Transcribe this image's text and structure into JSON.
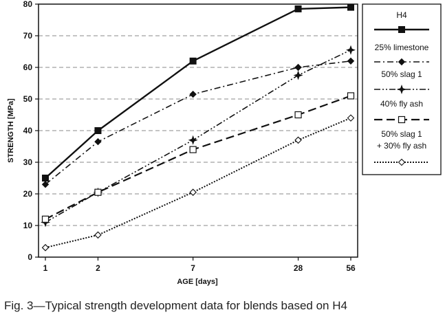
{
  "caption": "Fig. 3—Typical strength development data for blends based on H4",
  "chart_data": {
    "type": "line",
    "xlabel": "AGE [days]",
    "ylabel": "STRENGTH [MPa]",
    "x_scale": "log",
    "categories": [
      "1",
      "2",
      "7",
      "28",
      "56"
    ],
    "x": [
      1,
      2,
      7,
      28,
      56
    ],
    "ylim": [
      0,
      80
    ],
    "yticks": [
      0,
      10,
      20,
      30,
      40,
      50,
      60,
      70,
      80
    ],
    "grid": "horizontal dashed",
    "legend_position": "right",
    "series": [
      {
        "name": "H4",
        "values": [
          25,
          40,
          62,
          78.5,
          79
        ],
        "color": "#111111",
        "dash": "solid",
        "marker": "filled-square"
      },
      {
        "name": "25% limestone",
        "values": [
          23,
          36.5,
          51.5,
          60,
          62
        ],
        "color": "#111111",
        "dash": "dash-dot",
        "marker": "filled-diamond"
      },
      {
        "name": "50% slag 1",
        "values": [
          11,
          20.5,
          37,
          57.5,
          65.5
        ],
        "color": "#111111",
        "dash": "dash-dot-dot",
        "marker": "star"
      },
      {
        "name": "40% fly ash",
        "values": [
          12,
          20.5,
          34,
          45,
          51
        ],
        "color": "#111111",
        "dash": "long-dash",
        "marker": "open-square"
      },
      {
        "name": "50% slag 1\n+ 30% fly ash",
        "values": [
          3,
          7,
          20.5,
          37,
          44
        ],
        "color": "#111111",
        "dash": "dotted",
        "marker": "open-diamond"
      }
    ]
  }
}
